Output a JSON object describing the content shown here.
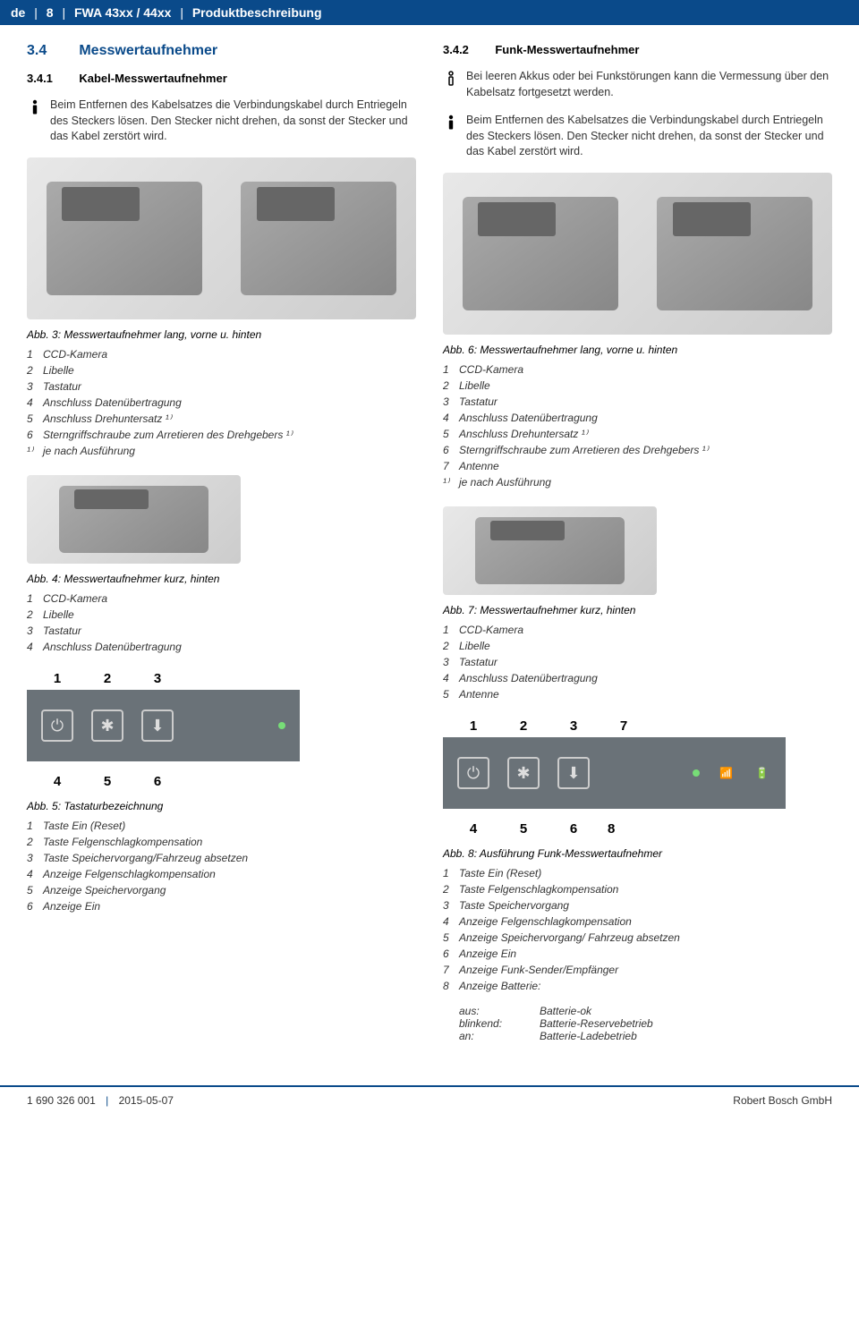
{
  "header": {
    "lang": "de",
    "page": "8",
    "model": "FWA 43xx / 44xx",
    "section": "Produktbeschreibung"
  },
  "left": {
    "h_num": "3.4",
    "h_title": "Messwertaufnehmer",
    "sub_num": "3.4.1",
    "sub_title": "Kabel-Messwertaufnehmer",
    "warn1": "Beim Entfernen des Kabelsatzes die Verbindungskabel durch Entriegeln des Steckers lösen. Den Stecker nicht drehen, da sonst der Stecker und das Kabel zerstört wird.",
    "fig3_cap": "Abb. 3:",
    "fig3_title": "Messwertaufnehmer lang, vorne u. hinten",
    "fig3_legend": [
      {
        "n": "1",
        "t": "CCD-Kamera"
      },
      {
        "n": "2",
        "t": "Libelle"
      },
      {
        "n": "3",
        "t": "Tastatur"
      },
      {
        "n": "4",
        "t": "Anschluss Datenübertragung"
      },
      {
        "n": "5",
        "t": "Anschluss Drehuntersatz ¹⁾"
      },
      {
        "n": "6",
        "t": "Sterngriffschraube zum Arretieren des Drehgebers ¹⁾"
      },
      {
        "n": "¹⁾",
        "t": "je nach Ausführung"
      }
    ],
    "fig4_cap": "Abb. 4:",
    "fig4_title": "Messwertaufnehmer kurz, hinten",
    "fig4_legend": [
      {
        "n": "1",
        "t": "CCD-Kamera"
      },
      {
        "n": "2",
        "t": "Libelle"
      },
      {
        "n": "3",
        "t": "Tastatur"
      },
      {
        "n": "4",
        "t": "Anschluss Datenübertragung"
      }
    ],
    "keypad_top": [
      "1",
      "2",
      "3"
    ],
    "keypad_bot": [
      "4",
      "5",
      "6"
    ],
    "fig5_cap": "Abb. 5:",
    "fig5_title": "Tastaturbezeichnung",
    "fig5_legend": [
      {
        "n": "1",
        "t": "Taste Ein (Reset)"
      },
      {
        "n": "2",
        "t": "Taste Felgenschlagkompensation"
      },
      {
        "n": "3",
        "t": "Taste Speichervorgang/Fahrzeug absetzen"
      },
      {
        "n": "4",
        "t": "Anzeige Felgenschlagkompensation"
      },
      {
        "n": "5",
        "t": "Anzeige Speichervorgang"
      },
      {
        "n": "6",
        "t": "Anzeige Ein"
      }
    ]
  },
  "right": {
    "sub_num": "3.4.2",
    "sub_title": "Funk-Messwertaufnehmer",
    "info1": "Bei leeren Akkus oder bei Funkstörungen kann die Vermessung über den Kabelsatz fortgesetzt werden.",
    "warn1": "Beim Entfernen des Kabelsatzes die Verbindungskabel durch Entriegeln des Steckers lösen. Den Stecker nicht drehen, da sonst der Stecker und das Kabel zerstört wird.",
    "fig6_cap": "Abb. 6:",
    "fig6_title": "Messwertaufnehmer lang, vorne u. hinten",
    "fig6_legend": [
      {
        "n": "1",
        "t": "CCD-Kamera"
      },
      {
        "n": "2",
        "t": "Libelle"
      },
      {
        "n": "3",
        "t": "Tastatur"
      },
      {
        "n": "4",
        "t": "Anschluss Datenübertragung"
      },
      {
        "n": "5",
        "t": "Anschluss Drehuntersatz ¹⁾"
      },
      {
        "n": "6",
        "t": "Sterngriffschraube zum Arretieren des Drehgebers ¹⁾"
      },
      {
        "n": "7",
        "t": "Antenne"
      },
      {
        "n": "¹⁾",
        "t": "je nach Ausführung"
      }
    ],
    "fig7_cap": "Abb. 7:",
    "fig7_title": "Messwertaufnehmer kurz, hinten",
    "fig7_legend": [
      {
        "n": "1",
        "t": "CCD-Kamera"
      },
      {
        "n": "2",
        "t": "Libelle"
      },
      {
        "n": "3",
        "t": "Tastatur"
      },
      {
        "n": "4",
        "t": "Anschluss Datenübertragung"
      },
      {
        "n": "5",
        "t": "Antenne"
      }
    ],
    "keypad_top": [
      "1",
      "2",
      "3",
      "7"
    ],
    "keypad_bot": [
      "4",
      "5",
      "6",
      "8"
    ],
    "fig8_cap": "Abb. 8:",
    "fig8_title": "Ausführung Funk-Messwertaufnehmer",
    "fig8_legend": [
      {
        "n": "1",
        "t": "Taste Ein (Reset)"
      },
      {
        "n": "2",
        "t": "Taste Felgenschlagkompensation"
      },
      {
        "n": "3",
        "t": "Taste Speichervorgang"
      },
      {
        "n": "4",
        "t": "Anzeige Felgenschlagkompensation"
      },
      {
        "n": "5",
        "t": "Anzeige Speichervorgang/ Fahrzeug absetzen"
      },
      {
        "n": "6",
        "t": "Anzeige Ein"
      },
      {
        "n": "7",
        "t": "Anzeige Funk-Sender/Empfänger"
      },
      {
        "n": "8",
        "t": "Anzeige Batterie:"
      }
    ],
    "battery_states": [
      {
        "k": "aus:",
        "v": "Batterie-ok"
      },
      {
        "k": "blinkend:",
        "v": "Batterie-Reservebetrieb"
      },
      {
        "k": "an:",
        "v": "Batterie-Ladebetrieb"
      }
    ]
  },
  "footer": {
    "doc_id": "1 690 326 001",
    "date": "2015-05-07",
    "company": "Robert Bosch GmbH"
  },
  "colors": {
    "brand_blue": "#0a4a8a",
    "keypad_bg": "#6a7278"
  }
}
